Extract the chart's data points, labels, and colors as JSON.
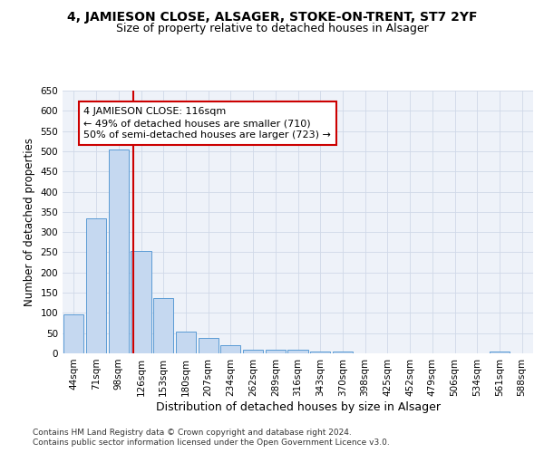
{
  "title1": "4, JAMIESON CLOSE, ALSAGER, STOKE-ON-TRENT, ST7 2YF",
  "title2": "Size of property relative to detached houses in Alsager",
  "xlabel": "Distribution of detached houses by size in Alsager",
  "ylabel": "Number of detached properties",
  "categories": [
    "44sqm",
    "71sqm",
    "98sqm",
    "126sqm",
    "153sqm",
    "180sqm",
    "207sqm",
    "234sqm",
    "262sqm",
    "289sqm",
    "316sqm",
    "343sqm",
    "370sqm",
    "398sqm",
    "425sqm",
    "452sqm",
    "479sqm",
    "506sqm",
    "534sqm",
    "561sqm",
    "588sqm"
  ],
  "values": [
    97,
    333,
    505,
    253,
    137,
    53,
    37,
    21,
    10,
    10,
    10,
    5,
    5,
    0,
    0,
    0,
    0,
    0,
    0,
    5,
    0
  ],
  "bar_color": "#c5d8f0",
  "bar_edge_color": "#5b9bd5",
  "grid_color": "#d0d8e8",
  "background_color": "#eef2f9",
  "vline_color": "#cc0000",
  "annotation_text": "4 JAMIESON CLOSE: 116sqm\n← 49% of detached houses are smaller (710)\n50% of semi-detached houses are larger (723) →",
  "annotation_box_color": "#ffffff",
  "annotation_box_edge": "#cc0000",
  "ylim": [
    0,
    650
  ],
  "yticks": [
    0,
    50,
    100,
    150,
    200,
    250,
    300,
    350,
    400,
    450,
    500,
    550,
    600,
    650
  ],
  "footer": "Contains HM Land Registry data © Crown copyright and database right 2024.\nContains public sector information licensed under the Open Government Licence v3.0.",
  "title1_fontsize": 10,
  "title2_fontsize": 9,
  "xlabel_fontsize": 9,
  "ylabel_fontsize": 8.5,
  "tick_fontsize": 7.5,
  "annotation_fontsize": 8,
  "footer_fontsize": 6.5
}
